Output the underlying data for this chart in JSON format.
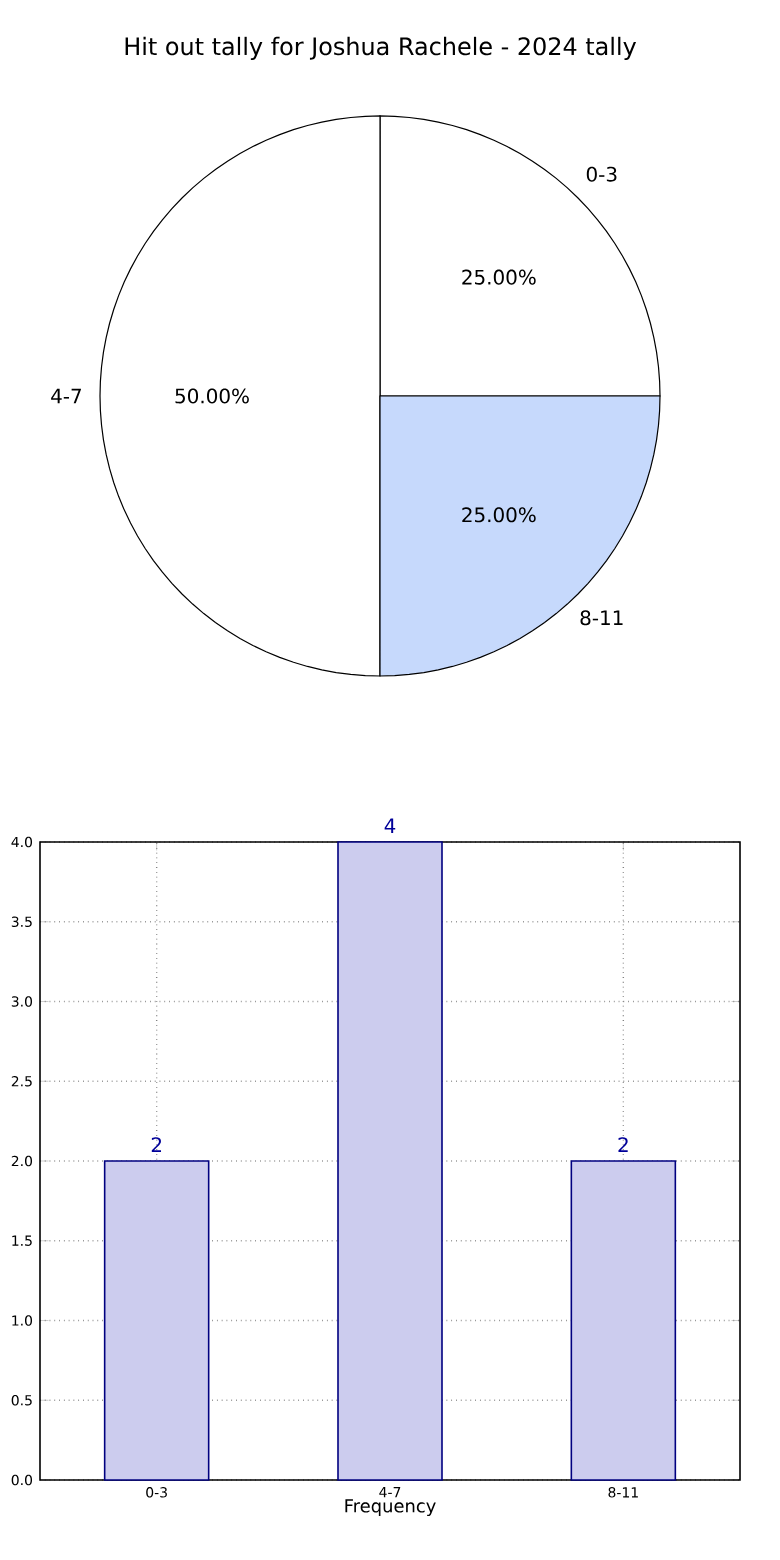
{
  "chart_data": [
    {
      "type": "pie",
      "title": "Hit out tally for Joshua Rachele - 2024 tally",
      "categories": [
        "0-3",
        "4-7",
        "8-11"
      ],
      "values": [
        25,
        50,
        25
      ],
      "colors": [
        "#ffffff",
        "#ffffff",
        "#c6d9fc"
      ],
      "value_labels": [
        "25.00%",
        "50.00%",
        "25.00%"
      ]
    },
    {
      "type": "bar",
      "categories": [
        "0-3",
        "4-7",
        "8-11"
      ],
      "values": [
        2,
        4,
        2
      ],
      "color": "#ccccee",
      "xlabel": "Frequency",
      "ylim": [
        0,
        4
      ],
      "yticks": [
        {
          "value": 0,
          "label": "0.0"
        },
        {
          "value": 0.5,
          "label": "0.5"
        },
        {
          "value": 1,
          "label": "1.0"
        },
        {
          "value": 1.5,
          "label": "1.5"
        },
        {
          "value": 2,
          "label": "2.0"
        },
        {
          "value": 2.5,
          "label": "2.5"
        },
        {
          "value": 3,
          "label": "3.0"
        },
        {
          "value": 3.5,
          "label": "3.5"
        },
        {
          "value": 4,
          "label": "4.0"
        }
      ],
      "grid": true,
      "data_labels": true
    }
  ]
}
